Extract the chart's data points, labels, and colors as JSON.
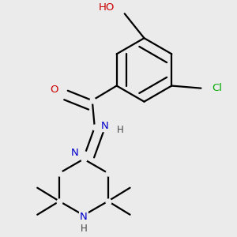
{
  "bg_color": "#ebebeb",
  "atom_colors": {
    "C": "#000000",
    "N": "#0000cc",
    "O": "#cc0000",
    "Cl": "#00aa00",
    "H": "#444444"
  },
  "bond_color": "#000000",
  "bond_width": 1.6
}
